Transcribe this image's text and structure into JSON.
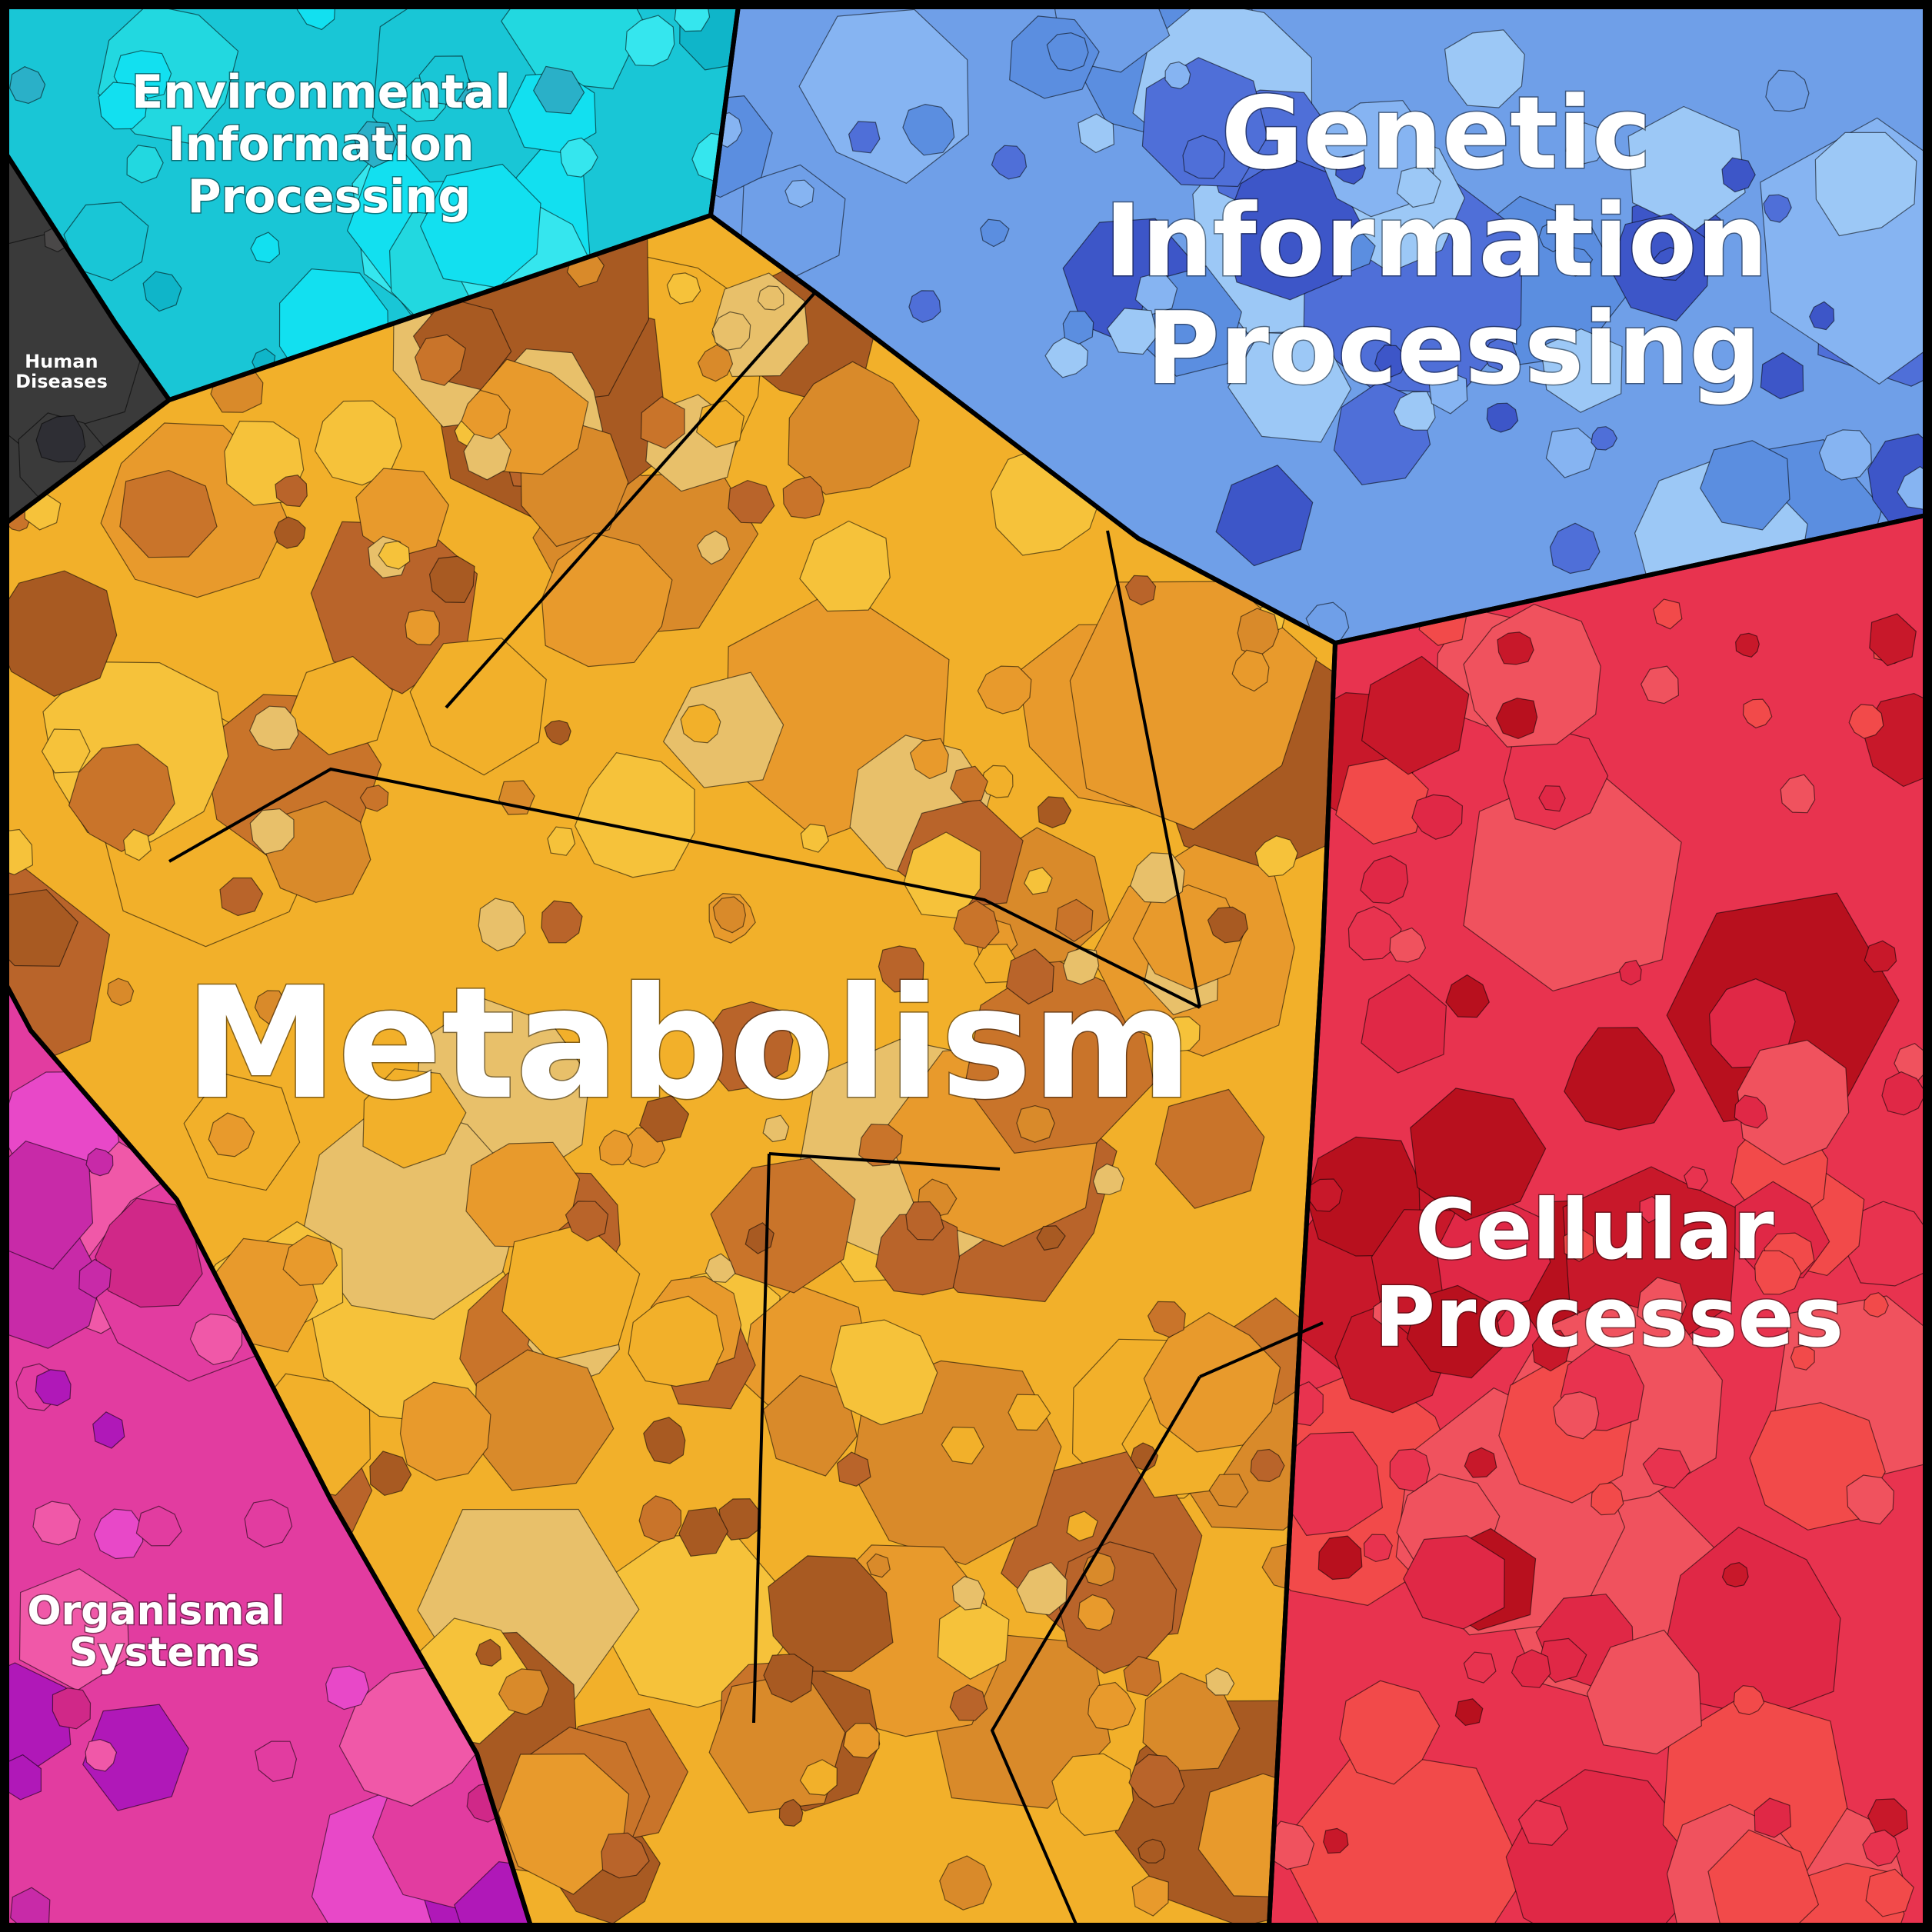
{
  "regions": [
    {
      "id": "environmental",
      "label_lines": [
        "Environmental",
        "Information",
        "Processing"
      ],
      "colors": [
        "#19c6d6",
        "#22d8e0",
        "#0fb5c9",
        "#35e6ee",
        "#2ab0c8",
        "#12e0f0"
      ]
    },
    {
      "id": "genetic",
      "label_lines": [
        "Genetic",
        "Information",
        "Processing"
      ],
      "colors": [
        "#6f9fe8",
        "#5b8ee0",
        "#4f6fd8",
        "#86b4f2",
        "#3d56c8",
        "#9cc8f6"
      ]
    },
    {
      "id": "human-diseases",
      "label_lines": [
        "Human",
        "Diseases"
      ],
      "colors": [
        "#3a3a3a",
        "#4a4848",
        "#555b52",
        "#2e2e34"
      ]
    },
    {
      "id": "metabolism",
      "label_lines": [
        "Metabolism"
      ],
      "colors": [
        "#f2b02a",
        "#e89a2c",
        "#c9742a",
        "#b9642a",
        "#f6c23a",
        "#d98a2a",
        "#a85a22",
        "#e8c06a"
      ]
    },
    {
      "id": "cellular",
      "label_lines": [
        "Cellular",
        "Processes"
      ],
      "colors": [
        "#e8334f",
        "#f24a4a",
        "#c8182a",
        "#f0525e",
        "#b8101e",
        "#e02846"
      ]
    },
    {
      "id": "organismal",
      "label_lines": [
        "Organismal",
        "Systems"
      ],
      "colors": [
        "#e23ca0",
        "#c82aa8",
        "#f058a8",
        "#b018b8",
        "#e848c8",
        "#d02888"
      ]
    }
  ]
}
